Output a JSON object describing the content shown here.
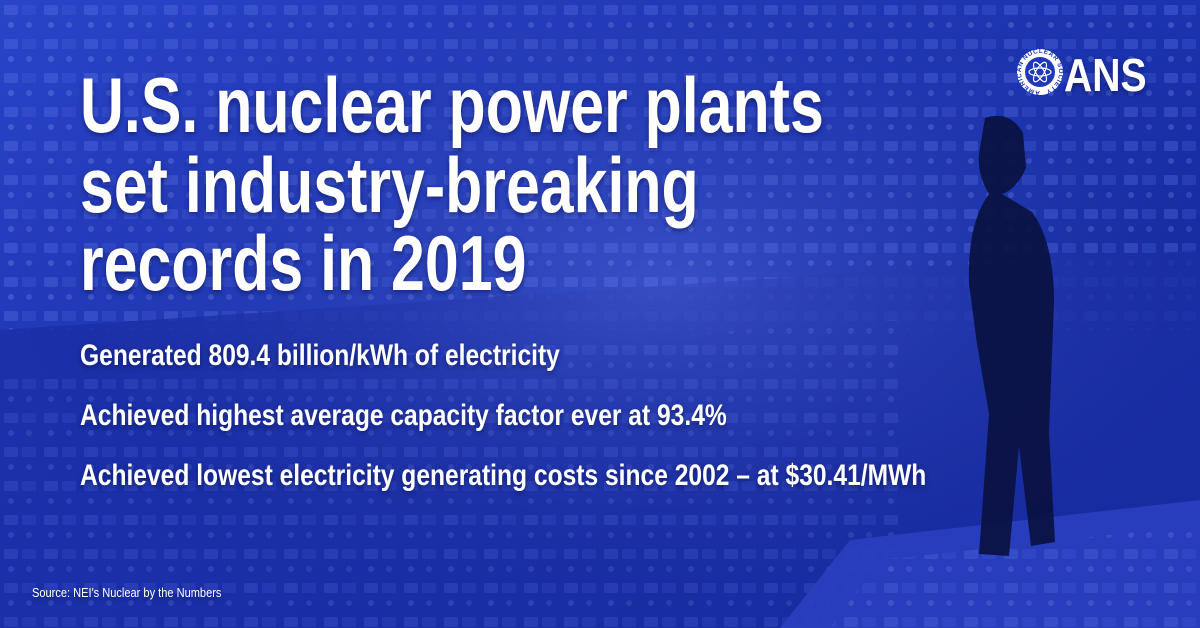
{
  "header": {
    "title_lines": [
      "U.S. nuclear power plants",
      "set industry-breaking",
      "records in 2019"
    ]
  },
  "facts": [
    "Generated 809.4 billion/kWh of electricity",
    "Achieved highest average capacity factor ever at 93.4%",
    "Achieved lowest electricity generating costs since 2002 – at $30.41/MWh"
  ],
  "source": "Source: NEI's Nuclear by the Numbers",
  "logo": {
    "text": "ANS",
    "ring_text": "AMERICAN NUCLEAR SOCIETY"
  }
}
